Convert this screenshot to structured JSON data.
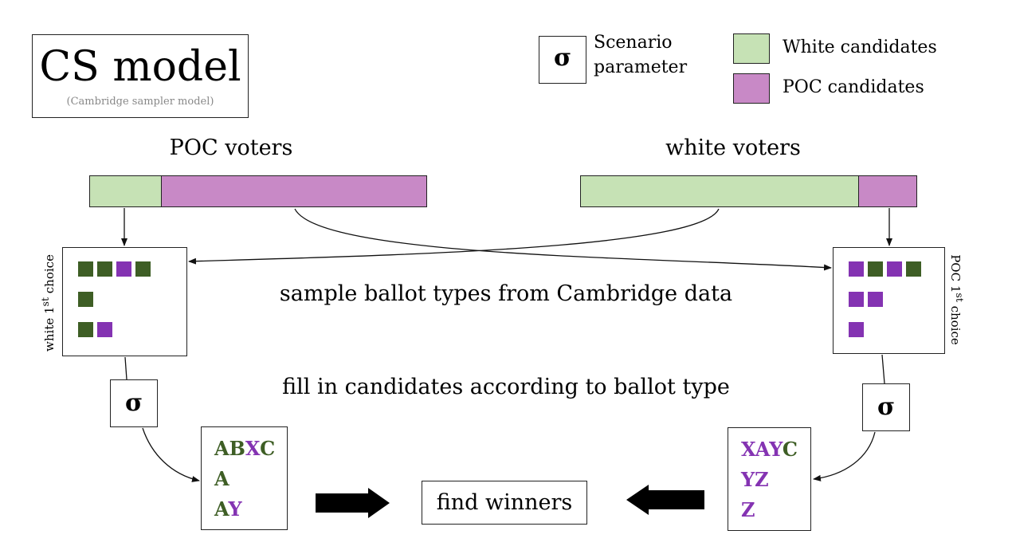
{
  "title": {
    "main": "CS model",
    "subtitle": "(Cambridge sampler model)"
  },
  "legend": {
    "sigma_symbol": "σ",
    "sigma_label_line1": "Scenario",
    "sigma_label_line2": "parameter",
    "white_candidates": "White candidates",
    "poc_candidates": "POC candidates"
  },
  "groups": {
    "poc_voters": "POC voters",
    "white_voters": "white voters"
  },
  "side_labels": {
    "left": {
      "prefix": "white 1",
      "sup": "st",
      "suffix": " choice"
    },
    "right": {
      "prefix": "POC 1",
      "sup": "st",
      "suffix": " choice"
    }
  },
  "steps": {
    "sample": "sample ballot types from Cambridge data",
    "fill": "fill in candidates according to ballot type"
  },
  "sigma_boxes": {
    "left": "σ",
    "right": "σ"
  },
  "left_ballots": {
    "line1": [
      "A",
      "B",
      "X",
      "C"
    ],
    "line2": [
      "A"
    ],
    "line3": [
      "A",
      "Y"
    ]
  },
  "right_ballots": {
    "line1": [
      "X",
      "A",
      "Y",
      "C"
    ],
    "line2": [
      "Y",
      "Z"
    ],
    "line3": [
      "Z"
    ]
  },
  "find_winners": "find winners",
  "colors": {
    "white_fill": "#c6e2b5",
    "poc_fill": "#c889c6",
    "white_dark": "#3e5e25",
    "poc_dark": "#8433b2"
  }
}
